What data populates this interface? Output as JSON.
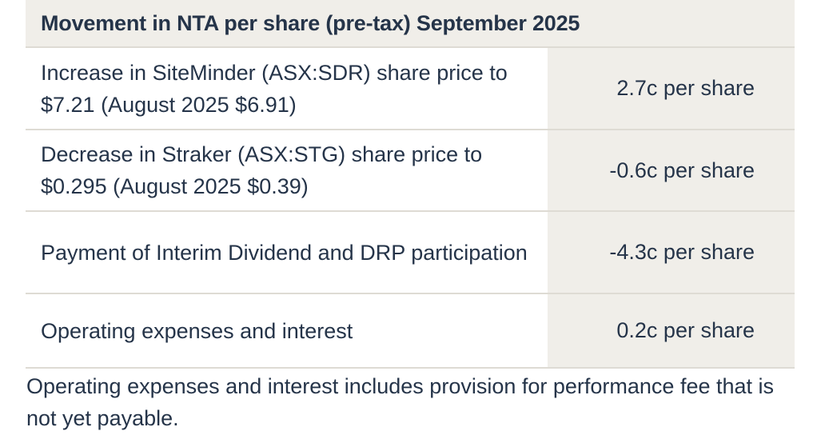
{
  "table": {
    "title": "Movement in NTA per share (pre-tax) September 2025",
    "rows": [
      {
        "description": "Increase in SiteMinder (ASX:SDR) share price to $7.21 (August 2025 $6.91)",
        "value": "2.7c per share"
      },
      {
        "description": "Decrease in Straker (ASX:STG) share price to $0.295 (August 2025 $0.39)",
        "value": "-0.6c per share"
      },
      {
        "description": "Payment of Interim Dividend and DRP participation",
        "value": "-4.3c per share"
      },
      {
        "description": "Operating expenses and interest",
        "value": "0.2c per share"
      }
    ]
  },
  "footnote": "Operating expenses and interest includes provision for performance fee that is not yet payable.",
  "colors": {
    "text": "#253449",
    "shaded": "#f0eee9",
    "divider": "#dedbd4"
  }
}
